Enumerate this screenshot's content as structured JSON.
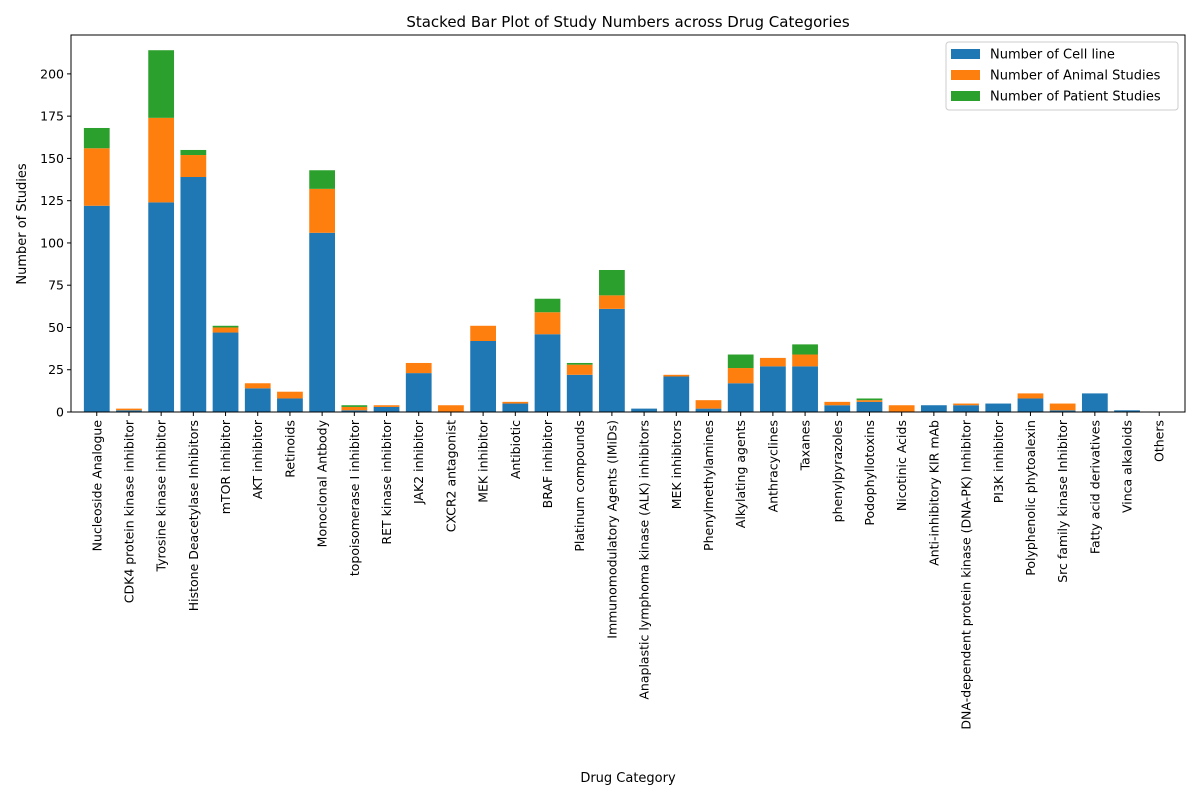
{
  "chart_data": {
    "type": "bar",
    "stacked": true,
    "title": "Stacked Bar Plot of Study Numbers across Drug Categories",
    "xlabel": "Drug Category",
    "ylabel": "Number of Studies",
    "ylim": [
      0,
      223
    ],
    "yticks": [
      0,
      25,
      50,
      75,
      100,
      125,
      150,
      175,
      200
    ],
    "grid": false,
    "legend_position": "top-right",
    "categories": [
      "Nucleoside Analogue",
      "CDK4 protein kinase inhibitor",
      "Tyrosine kinase inhibitor",
      "Histone Deacetylase Inhibitors",
      "mTOR inhibitor",
      "AKT inhibitor",
      "Retinoids",
      "Monoclonal Antbody",
      "topoisomerase I inhibitor",
      "RET kinase inhibitor",
      "JAK2 inhibitor",
      "CXCR2 antagonist",
      "MEK inhibitor",
      "Antibiotic",
      "BRAF inhibitor",
      "Platinum compounds",
      "Immunomodulatory Agents (IMiDs)",
      "Anaplastic lymphoma kinase (ALK) inhibitors",
      "MEK inhibitors",
      "Phenylmethylamines",
      "Alkylating agents",
      "Anthracyclines",
      "Taxanes",
      "phenylpyrazoles",
      "Podophyllotoxins",
      "Nicotinic Acids",
      "Anti-inhibitory KIR mAb",
      "DNA-dependent protein kinase (DNA-PK) Inhibitor",
      "PI3K inhibitor",
      "Polyphenolic phytoalexin",
      "Src family kinase Inhibitor",
      "Fatty acid derivatives",
      "Vinca alkaloids",
      "Others"
    ],
    "series": [
      {
        "name": "Number of Cell line",
        "color": "#1f77b4",
        "values": [
          122,
          1,
          124,
          139,
          47,
          14,
          8,
          106,
          1,
          3,
          23,
          0,
          42,
          5,
          46,
          22,
          61,
          2,
          21,
          2,
          17,
          27,
          27,
          4,
          6,
          0,
          4,
          4,
          5,
          8,
          1,
          11,
          1,
          0
        ]
      },
      {
        "name": "Number of Animal Studies",
        "color": "#ff7f0e",
        "values": [
          34,
          1,
          50,
          13,
          3,
          3,
          4,
          26,
          2,
          1,
          6,
          4,
          9,
          1,
          13,
          6,
          8,
          0,
          1,
          5,
          9,
          5,
          7,
          2,
          1,
          4,
          0,
          1,
          0,
          3,
          4,
          0,
          0,
          0
        ]
      },
      {
        "name": "Number of Patient Studies",
        "color": "#2ca02c",
        "values": [
          12,
          0,
          40,
          3,
          1,
          0,
          0,
          11,
          1,
          0,
          0,
          0,
          0,
          0,
          8,
          1,
          15,
          0,
          0,
          0,
          8,
          0,
          6,
          0,
          1,
          0,
          0,
          0,
          0,
          0,
          0,
          0,
          0,
          0
        ]
      }
    ]
  }
}
